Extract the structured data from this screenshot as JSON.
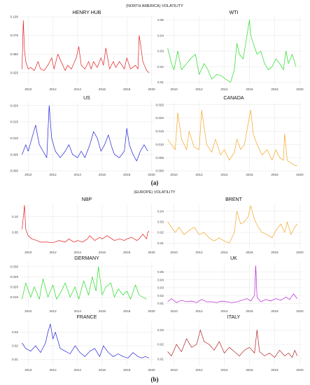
{
  "figure": {
    "top_title": "(NORTH AMERICA) VOLATILITY",
    "bottom_title": "(EUROPE) VOLATILITY",
    "caption_a": "(a)",
    "caption_b": "(b)"
  },
  "colors": {
    "red": "#e41a1c",
    "green": "#22dd22",
    "blue": "#1f1fd6",
    "orange": "#f5a623",
    "purple": "#b620d6",
    "darkred": "#b22222"
  },
  "chart_data": [
    {
      "id": "henry-hub",
      "type": "line",
      "title": "HENRY HUB",
      "color": "#e41a1c",
      "x_range": [
        2009.3,
        2020.2
      ],
      "xticks": [
        2010,
        2012,
        2014,
        2016,
        2018,
        2020
      ],
      "ylim": [
        0.008,
        0.1
      ],
      "yticks": [
        0.025,
        0.05,
        0.075,
        0.1
      ],
      "ytick_labels": [
        "0.025",
        "0.050",
        "0.075",
        "0.100"
      ],
      "x": [
        2009.5,
        2009.6,
        2009.7,
        2009.8,
        2010.0,
        2010.2,
        2010.5,
        2010.8,
        2011.0,
        2011.3,
        2011.6,
        2011.9,
        2012.1,
        2012.4,
        2012.8,
        2013.0,
        2013.2,
        2013.5,
        2013.9,
        2014.1,
        2014.3,
        2014.6,
        2014.9,
        2015.1,
        2015.3,
        2015.6,
        2015.9,
        2016.1,
        2016.3,
        2016.6,
        2016.9,
        2017.1,
        2017.4,
        2017.8,
        2018.0,
        2018.3,
        2018.7,
        2018.9,
        2019.0,
        2019.1,
        2019.3,
        2019.6,
        2019.8
      ],
      "y": [
        0.03,
        0.095,
        0.055,
        0.04,
        0.03,
        0.032,
        0.028,
        0.04,
        0.03,
        0.028,
        0.035,
        0.045,
        0.03,
        0.05,
        0.035,
        0.028,
        0.035,
        0.03,
        0.045,
        0.06,
        0.035,
        0.03,
        0.04,
        0.03,
        0.04,
        0.032,
        0.045,
        0.035,
        0.058,
        0.03,
        0.04,
        0.032,
        0.04,
        0.03,
        0.045,
        0.03,
        0.035,
        0.03,
        0.075,
        0.065,
        0.04,
        0.028,
        0.025
      ]
    },
    {
      "id": "wti",
      "type": "line",
      "title": "WTI",
      "color": "#22dd22",
      "x_range": [
        2009.3,
        2020.2
      ],
      "xticks": [
        2010,
        2012,
        2014,
        2016,
        2018,
        2020
      ],
      "ylim": [
        0.008,
        0.052
      ],
      "yticks": [
        0.01,
        0.02,
        0.03,
        0.04,
        0.05
      ],
      "ytick_labels": [
        "0.01",
        "0.02",
        "0.03",
        "0.04",
        "0.05"
      ],
      "x": [
        2009.5,
        2009.8,
        2010.0,
        2010.3,
        2010.6,
        2011.0,
        2011.3,
        2011.7,
        2012.0,
        2012.4,
        2012.7,
        2013.0,
        2013.4,
        2013.8,
        2014.1,
        2014.5,
        2014.8,
        2015.0,
        2015.2,
        2015.5,
        2015.8,
        2016.0,
        2016.1,
        2016.3,
        2016.6,
        2016.9,
        2017.2,
        2017.5,
        2017.8,
        2018.1,
        2018.4,
        2018.7,
        2018.9,
        2019.1,
        2019.4,
        2019.7
      ],
      "y": [
        0.032,
        0.022,
        0.018,
        0.03,
        0.018,
        0.022,
        0.025,
        0.028,
        0.015,
        0.022,
        0.018,
        0.012,
        0.015,
        0.014,
        0.012,
        0.01,
        0.018,
        0.035,
        0.028,
        0.025,
        0.04,
        0.05,
        0.04,
        0.035,
        0.028,
        0.03,
        0.022,
        0.018,
        0.02,
        0.025,
        0.022,
        0.018,
        0.03,
        0.022,
        0.028,
        0.02
      ]
    },
    {
      "id": "us",
      "type": "line",
      "title": "US",
      "color": "#1f1fd6",
      "x_range": [
        2009.3,
        2020.2
      ],
      "xticks": [
        2010,
        2012,
        2014,
        2016,
        2018,
        2020
      ],
      "ylim": [
        0.0,
        0.021
      ],
      "yticks": [
        0.0,
        0.005,
        0.01,
        0.015,
        0.02
      ],
      "ytick_labels": [
        "0.000",
        "0.005",
        "0.010",
        "0.015",
        "0.020"
      ],
      "x": [
        2009.5,
        2009.8,
        2010.0,
        2010.3,
        2010.6,
        2010.9,
        2011.2,
        2011.5,
        2011.7,
        2011.9,
        2012.2,
        2012.6,
        2013.0,
        2013.3,
        2013.6,
        2014.0,
        2014.3,
        2014.6,
        2015.0,
        2015.3,
        2015.6,
        2015.9,
        2016.2,
        2016.5,
        2016.8,
        2017.0,
        2017.4,
        2017.8,
        2018.0,
        2018.2,
        2018.5,
        2018.8,
        2019.1,
        2019.4,
        2019.7
      ],
      "y": [
        0.005,
        0.008,
        0.006,
        0.01,
        0.014,
        0.008,
        0.006,
        0.004,
        0.02,
        0.01,
        0.006,
        0.004,
        0.006,
        0.008,
        0.005,
        0.004,
        0.006,
        0.004,
        0.008,
        0.012,
        0.01,
        0.006,
        0.008,
        0.011,
        0.007,
        0.005,
        0.004,
        0.006,
        0.013,
        0.008,
        0.005,
        0.003,
        0.006,
        0.008,
        0.006
      ]
    },
    {
      "id": "canada",
      "type": "line",
      "title": "CANADA",
      "color": "#f5a623",
      "x_range": [
        2009.3,
        2020.2
      ],
      "xticks": [
        2010,
        2012,
        2014,
        2016,
        2018,
        2020
      ],
      "ylim": [
        0.0,
        0.026
      ],
      "yticks": [
        0.0,
        0.005,
        0.01,
        0.015,
        0.02,
        0.025
      ],
      "ytick_labels": [
        "0.000",
        "0.005",
        "0.010",
        "0.015",
        "0.020",
        "0.025"
      ],
      "x": [
        2009.5,
        2009.8,
        2010.1,
        2010.3,
        2010.6,
        2011.0,
        2011.2,
        2011.6,
        2012.0,
        2012.2,
        2012.6,
        2013.0,
        2013.3,
        2013.7,
        2014.0,
        2014.4,
        2014.8,
        2015.0,
        2015.3,
        2015.6,
        2015.9,
        2016.1,
        2016.3,
        2016.6,
        2017.0,
        2017.4,
        2017.8,
        2018.1,
        2018.4,
        2018.7,
        2018.8,
        2019.0,
        2019.3,
        2019.6,
        2019.8
      ],
      "y": [
        0.012,
        0.01,
        0.008,
        0.022,
        0.012,
        0.008,
        0.015,
        0.009,
        0.008,
        0.023,
        0.01,
        0.007,
        0.012,
        0.006,
        0.008,
        0.004,
        0.007,
        0.012,
        0.008,
        0.01,
        0.018,
        0.023,
        0.014,
        0.01,
        0.006,
        0.008,
        0.004,
        0.008,
        0.005,
        0.004,
        0.014,
        0.004,
        0.003,
        0.002,
        0.002
      ]
    },
    {
      "id": "nbp",
      "type": "line",
      "title": "NBP",
      "color": "#e41a1c",
      "x_range": [
        2009.3,
        2020.2
      ],
      "xticks": [
        2010,
        2012,
        2014,
        2016,
        2018,
        2020
      ],
      "ylim": [
        0.0,
        0.14
      ],
      "yticks": [
        0.05,
        0.1
      ],
      "ytick_labels": [
        "0.05",
        "0.10"
      ],
      "x": [
        2009.5,
        2009.7,
        2009.8,
        2010.0,
        2010.3,
        2010.7,
        2011.0,
        2011.5,
        2012.0,
        2012.5,
        2013.0,
        2013.3,
        2013.7,
        2014.0,
        2014.4,
        2014.8,
        2015.0,
        2015.4,
        2015.8,
        2016.0,
        2016.4,
        2016.8,
        2017.0,
        2017.4,
        2017.8,
        2018.0,
        2018.4,
        2018.8,
        2019.0,
        2019.3,
        2019.6,
        2019.7,
        2019.8
      ],
      "y": [
        0.06,
        0.135,
        0.06,
        0.04,
        0.03,
        0.025,
        0.02,
        0.02,
        0.018,
        0.025,
        0.02,
        0.03,
        0.02,
        0.025,
        0.02,
        0.03,
        0.04,
        0.025,
        0.035,
        0.03,
        0.04,
        0.03,
        0.025,
        0.03,
        0.025,
        0.03,
        0.035,
        0.025,
        0.03,
        0.045,
        0.03,
        0.05,
        0.055
      ]
    },
    {
      "id": "brent",
      "type": "line",
      "title": "BRENT",
      "color": "#f5a623",
      "x_range": [
        2009.3,
        2020.2
      ],
      "xticks": [
        2010,
        2012,
        2014,
        2016,
        2018,
        2020
      ],
      "ylim": [
        0.005,
        0.047
      ],
      "yticks": [
        0.01,
        0.02,
        0.03,
        0.04
      ],
      "ytick_labels": [
        "0.01",
        "0.02",
        "0.03",
        "0.04"
      ],
      "x": [
        2009.5,
        2009.8,
        2010.1,
        2010.4,
        2010.8,
        2011.2,
        2011.6,
        2012.0,
        2012.4,
        2012.8,
        2013.2,
        2013.6,
        2014.0,
        2014.4,
        2014.8,
        2015.0,
        2015.3,
        2015.6,
        2015.9,
        2016.1,
        2016.4,
        2016.7,
        2017.0,
        2017.4,
        2017.8,
        2018.1,
        2018.5,
        2018.8,
        2019.0,
        2019.3,
        2019.6,
        2019.8
      ],
      "y": [
        0.03,
        0.025,
        0.02,
        0.025,
        0.018,
        0.022,
        0.025,
        0.018,
        0.02,
        0.015,
        0.012,
        0.015,
        0.012,
        0.01,
        0.02,
        0.04,
        0.028,
        0.03,
        0.035,
        0.045,
        0.032,
        0.025,
        0.02,
        0.018,
        0.015,
        0.022,
        0.028,
        0.02,
        0.03,
        0.018,
        0.025,
        0.028
      ]
    },
    {
      "id": "germany",
      "type": "line",
      "title": "GERMANY",
      "color": "#22dd22",
      "x_range": [
        2009.3,
        2020.2
      ],
      "xticks": [
        2010,
        2012,
        2014,
        2016,
        2018,
        2020
      ],
      "ylim": [
        0.01,
        0.032
      ],
      "yticks": [
        0.015,
        0.02,
        0.025,
        0.03
      ],
      "ytick_labels": [
        "0.015",
        "0.020",
        "0.025",
        "0.030"
      ],
      "x": [
        2009.5,
        2009.8,
        2010.2,
        2010.5,
        2010.9,
        2011.2,
        2011.6,
        2012.0,
        2012.3,
        2012.7,
        2013.0,
        2013.4,
        2013.8,
        2014.1,
        2014.5,
        2014.9,
        2015.2,
        2015.5,
        2015.7,
        2016.0,
        2016.3,
        2016.7,
        2017.0,
        2017.3,
        2017.7,
        2018.0,
        2018.3,
        2018.7,
        2019.0,
        2019.3,
        2019.6
      ],
      "y": [
        0.014,
        0.022,
        0.015,
        0.02,
        0.014,
        0.024,
        0.015,
        0.021,
        0.014,
        0.018,
        0.022,
        0.015,
        0.02,
        0.014,
        0.023,
        0.016,
        0.025,
        0.018,
        0.03,
        0.016,
        0.02,
        0.022,
        0.015,
        0.019,
        0.016,
        0.018,
        0.014,
        0.021,
        0.016,
        0.015,
        0.014
      ]
    },
    {
      "id": "uk",
      "type": "line",
      "title": "UK",
      "color": "#b620d6",
      "x_range": [
        2009.3,
        2020.2
      ],
      "xticks": [
        2010,
        2012,
        2014,
        2016,
        2018,
        2020
      ],
      "ylim": [
        0.005,
        0.062
      ],
      "yticks": [
        0.01,
        0.02,
        0.03,
        0.04,
        0.05
      ],
      "ytick_labels": [
        "0.01",
        "0.02",
        "0.03",
        "0.04",
        "0.05"
      ],
      "x": [
        2009.5,
        2009.8,
        2010.2,
        2010.6,
        2011.0,
        2011.4,
        2011.8,
        2012.2,
        2012.6,
        2013.0,
        2013.4,
        2013.8,
        2014.2,
        2014.6,
        2015.0,
        2015.4,
        2015.8,
        2016.1,
        2016.4,
        2016.5,
        2016.6,
        2016.9,
        2017.3,
        2017.7,
        2018.1,
        2018.5,
        2018.9,
        2019.2,
        2019.5,
        2019.8
      ],
      "y": [
        0.012,
        0.016,
        0.011,
        0.014,
        0.012,
        0.013,
        0.011,
        0.015,
        0.012,
        0.012,
        0.011,
        0.013,
        0.012,
        0.011,
        0.012,
        0.014,
        0.016,
        0.013,
        0.02,
        0.058,
        0.018,
        0.012,
        0.015,
        0.013,
        0.016,
        0.014,
        0.018,
        0.015,
        0.022,
        0.016
      ]
    },
    {
      "id": "france",
      "type": "line",
      "title": "FRANCE",
      "color": "#1f1fd6",
      "x_range": [
        2009.3,
        2020.2
      ],
      "xticks": [
        2010,
        2012,
        2014,
        2016,
        2018,
        2020
      ],
      "ylim": [
        0.005,
        0.038
      ],
      "yticks": [
        0.01,
        0.02,
        0.03
      ],
      "ytick_labels": [
        "0.01",
        "0.02",
        "0.03"
      ],
      "x": [
        2009.5,
        2009.8,
        2010.2,
        2010.6,
        2011.0,
        2011.4,
        2011.6,
        2011.8,
        2012.0,
        2012.2,
        2012.6,
        2013.0,
        2013.4,
        2013.8,
        2014.2,
        2014.6,
        2015.0,
        2015.4,
        2015.8,
        2016.1,
        2016.5,
        2016.9,
        2017.3,
        2017.7,
        2018.1,
        2018.5,
        2018.9,
        2019.2,
        2019.5,
        2019.8
      ],
      "y": [
        0.022,
        0.018,
        0.016,
        0.02,
        0.015,
        0.022,
        0.03,
        0.036,
        0.025,
        0.03,
        0.018,
        0.016,
        0.014,
        0.02,
        0.015,
        0.012,
        0.016,
        0.018,
        0.012,
        0.02,
        0.015,
        0.012,
        0.014,
        0.012,
        0.011,
        0.015,
        0.012,
        0.011,
        0.012,
        0.011
      ]
    },
    {
      "id": "italy",
      "type": "line",
      "title": "ITALY",
      "color": "#b22222",
      "x_range": [
        2009.3,
        2020.2
      ],
      "xticks": [
        2010,
        2012,
        2014,
        2016,
        2018,
        2020
      ],
      "ylim": [
        0.005,
        0.036
      ],
      "yticks": [
        0.01,
        0.02,
        0.03
      ],
      "ytick_labels": [
        "0.01",
        "0.02",
        "0.03"
      ],
      "x": [
        2009.5,
        2009.8,
        2010.2,
        2010.6,
        2011.0,
        2011.4,
        2011.8,
        2012.1,
        2012.4,
        2012.8,
        2013.2,
        2013.6,
        2014.0,
        2014.4,
        2014.8,
        2015.2,
        2015.6,
        2016.0,
        2016.4,
        2016.6,
        2016.8,
        2017.2,
        2017.6,
        2018.0,
        2018.4,
        2018.8,
        2019.1,
        2019.4,
        2019.6,
        2019.8
      ],
      "y": [
        0.015,
        0.012,
        0.02,
        0.015,
        0.024,
        0.018,
        0.02,
        0.03,
        0.022,
        0.02,
        0.016,
        0.022,
        0.014,
        0.018,
        0.015,
        0.012,
        0.016,
        0.018,
        0.014,
        0.03,
        0.015,
        0.012,
        0.014,
        0.011,
        0.016,
        0.012,
        0.014,
        0.011,
        0.016,
        0.012
      ]
    }
  ]
}
